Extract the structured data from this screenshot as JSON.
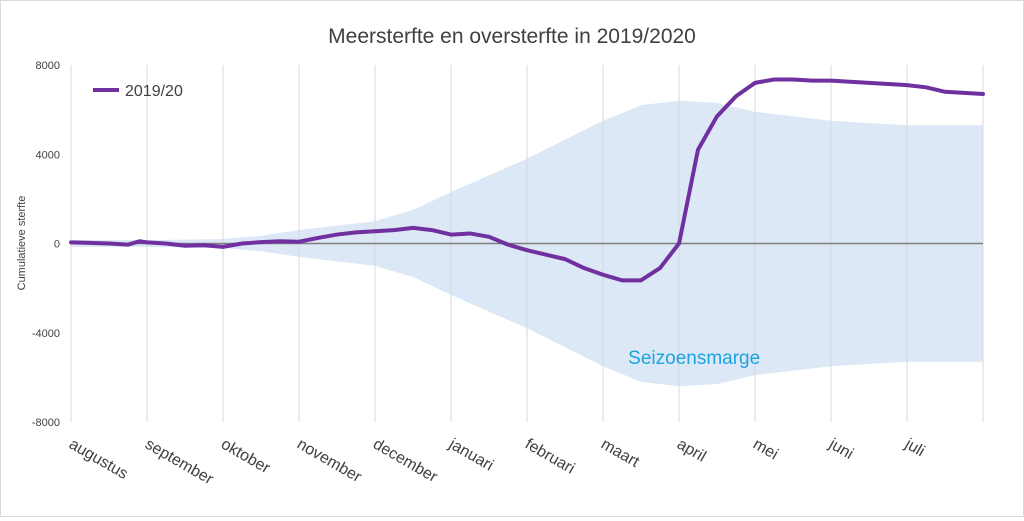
{
  "chart_data": {
    "type": "line",
    "title": "Meersterfte en oversterfte in 2019/2020",
    "xlabel": "",
    "ylabel": "Cumulatieve sterfte",
    "ylim": [
      -8000,
      8000
    ],
    "yticks": [
      8000,
      4000,
      0,
      -4000,
      -8000
    ],
    "ytick_labels": [
      "8000",
      "4000",
      "0",
      "-4000",
      "-8000"
    ],
    "xlim": [
      0,
      12
    ],
    "grid": true,
    "legend": {
      "placement": "top-left",
      "entries": [
        "2019/20"
      ]
    },
    "categories": [
      "augustus",
      "september",
      "oktober",
      "november",
      "december",
      "januari",
      "februari",
      "maart",
      "april",
      "mei",
      "juni",
      "juli"
    ],
    "series": [
      {
        "name": "2019/20",
        "color": "#7030a0",
        "x": [
          0,
          0.25,
          0.5,
          0.75,
          0.9,
          1.0,
          1.25,
          1.5,
          1.75,
          2.0,
          2.25,
          2.5,
          2.75,
          3.0,
          3.25,
          3.5,
          3.75,
          4.0,
          4.25,
          4.5,
          4.75,
          5.0,
          5.25,
          5.5,
          5.75,
          6.0,
          6.25,
          6.5,
          6.75,
          7.0,
          7.25,
          7.5,
          7.75,
          8.0,
          8.25,
          8.5,
          8.75,
          9.0,
          9.25,
          9.5,
          9.75,
          10.0,
          10.25,
          10.5,
          10.75,
          11.0,
          11.25,
          11.5,
          12.0
        ],
        "values": [
          50,
          30,
          0,
          -50,
          100,
          50,
          0,
          -100,
          -80,
          -150,
          0,
          60,
          100,
          80,
          250,
          400,
          500,
          550,
          600,
          700,
          600,
          400,
          450,
          300,
          -50,
          -300,
          -500,
          -700,
          -1100,
          -1400,
          -1650,
          -1650,
          -1100,
          0,
          4200,
          5700,
          6600,
          7200,
          7350,
          7350,
          7300,
          7300,
          7250,
          7200,
          7150,
          7100,
          7000,
          6800,
          6700
        ]
      }
    ],
    "band": {
      "name": "Seizoensmarge",
      "color": "#dce8f6",
      "x": [
        0,
        1,
        2,
        2.5,
        3,
        4,
        4.5,
        5,
        6,
        7,
        7.5,
        8,
        8.5,
        9,
        10,
        11,
        12
      ],
      "upper": [
        150,
        150,
        200,
        350,
        600,
        1000,
        1500,
        2300,
        3800,
        5500,
        6200,
        6400,
        6300,
        5900,
        5500,
        5300,
        5300
      ],
      "lower": [
        -150,
        -150,
        -200,
        -350,
        -600,
        -1000,
        -1500,
        -2300,
        -3800,
        -5500,
        -6200,
        -6400,
        -6300,
        -5900,
        -5500,
        -5300,
        -5300
      ]
    },
    "annotations": [
      {
        "text": "Seizoensmarge",
        "x": 8.2,
        "y": -5400,
        "color": "#1ca3e0"
      }
    ]
  }
}
